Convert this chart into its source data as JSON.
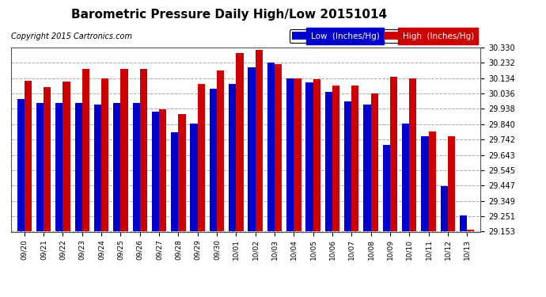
{
  "title": "Barometric Pressure Daily High/Low 20151014",
  "copyright": "Copyright 2015 Cartronics.com",
  "legend_low": "Low  (Inches/Hg)",
  "legend_high": "High  (Inches/Hg)",
  "categories": [
    "09/20",
    "09/21",
    "09/22",
    "09/23",
    "09/24",
    "09/25",
    "09/26",
    "09/27",
    "09/28",
    "09/29",
    "09/30",
    "10/01",
    "10/02",
    "10/03",
    "10/04",
    "10/05",
    "10/06",
    "10/07",
    "10/08",
    "10/09",
    "10/10",
    "10/11",
    "10/12",
    "10/13"
  ],
  "low_values": [
    30.0,
    29.975,
    29.975,
    29.975,
    29.965,
    29.975,
    29.975,
    29.92,
    29.79,
    29.845,
    30.065,
    30.095,
    30.205,
    30.235,
    30.135,
    30.105,
    30.045,
    29.985,
    29.965,
    29.705,
    29.845,
    29.765,
    29.445,
    29.255
  ],
  "high_values": [
    30.115,
    30.075,
    30.11,
    30.195,
    30.135,
    30.195,
    30.195,
    29.935,
    29.905,
    30.095,
    30.185,
    30.295,
    30.315,
    30.225,
    30.135,
    30.125,
    30.085,
    30.085,
    30.035,
    30.145,
    30.135,
    29.795,
    29.765,
    29.165
  ],
  "ymin": 29.153,
  "ymax": 30.33,
  "yticks": [
    29.153,
    29.251,
    29.349,
    29.447,
    29.545,
    29.643,
    29.742,
    29.84,
    29.938,
    30.036,
    30.134,
    30.232,
    30.33
  ],
  "low_color": "#0000cc",
  "high_color": "#cc0000",
  "bg_color": "#ffffff",
  "grid_color": "#aaaaaa",
  "title_fontsize": 11,
  "copyright_fontsize": 7,
  "legend_fontsize": 7.5,
  "bar_width": 0.38
}
